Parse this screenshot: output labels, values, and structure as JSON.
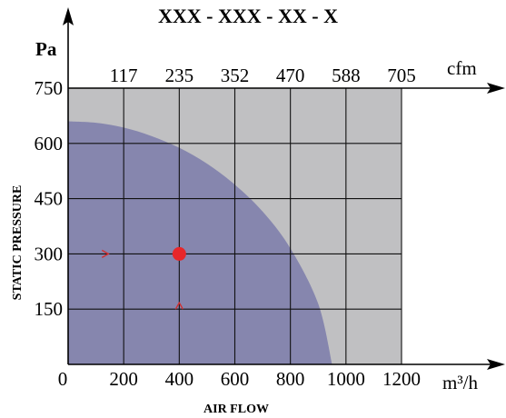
{
  "header": {
    "title": "XXX - XXX - XX - X"
  },
  "chart_data": {
    "type": "area",
    "title": "XXX - XXX - XX - X",
    "xlabel": "AIR FLOW",
    "ylabel": "STATIC PRESSURE",
    "x_unit": "m³/h",
    "y_unit": "Pa",
    "top_unit": "cfm",
    "xlim": [
      0,
      1200
    ],
    "ylim": [
      0,
      750
    ],
    "x_ticks": [
      "0",
      "200",
      "400",
      "600",
      "800",
      "1000",
      "1200"
    ],
    "y_ticks": [
      "150",
      "300",
      "450",
      "600",
      "750"
    ],
    "top_ticks": [
      "117",
      "235",
      "352",
      "470",
      "588",
      "705"
    ],
    "grid": true,
    "series": [
      {
        "x": [
          0,
          100,
          200,
          300,
          400,
          500,
          600,
          700,
          800,
          900,
          950
        ],
        "y": [
          660,
          656,
          643,
          620,
          588,
          545,
          488,
          415,
          315,
          165,
          0
        ]
      }
    ],
    "operating_point": {
      "x": 400,
      "y": 300
    },
    "colors": {
      "plot_background": "#c0c0c2",
      "curve_fill": "#8686ae",
      "grid": "#111111",
      "marker": "#e8262a",
      "arrow": "#d03030"
    }
  }
}
